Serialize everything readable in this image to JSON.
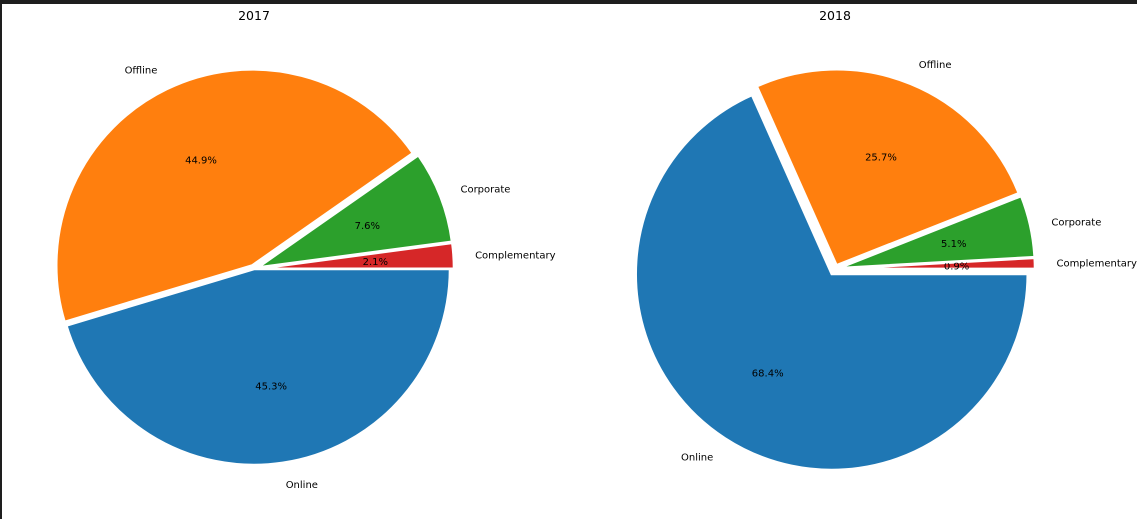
{
  "chart_data": [
    {
      "type": "pie",
      "title": "2017",
      "slices": [
        {
          "label": "Online",
          "value": 45.3,
          "pct_label": "45.3%",
          "color": "#1f77b4"
        },
        {
          "label": "Complementary",
          "value": 2.1,
          "pct_label": "2.1%",
          "color": "#d62728"
        },
        {
          "label": "Corporate",
          "value": 7.6,
          "pct_label": "7.6%",
          "color": "#2ca02c"
        },
        {
          "label": "Offline",
          "value": 44.9,
          "pct_label": "44.9%",
          "color": "#ff7f0e"
        }
      ]
    },
    {
      "type": "pie",
      "title": "2018",
      "slices": [
        {
          "label": "Online",
          "value": 68.4,
          "pct_label": "68.4%",
          "color": "#1f77b4"
        },
        {
          "label": "Complementary",
          "value": 0.9,
          "pct_label": "0.9%",
          "color": "#d62728"
        },
        {
          "label": "Corporate",
          "value": 5.1,
          "pct_label": "5.1%",
          "color": "#2ca02c"
        },
        {
          "label": "Offline",
          "value": 25.7,
          "pct_label": "25.7%",
          "color": "#ff7f0e"
        }
      ]
    }
  ]
}
